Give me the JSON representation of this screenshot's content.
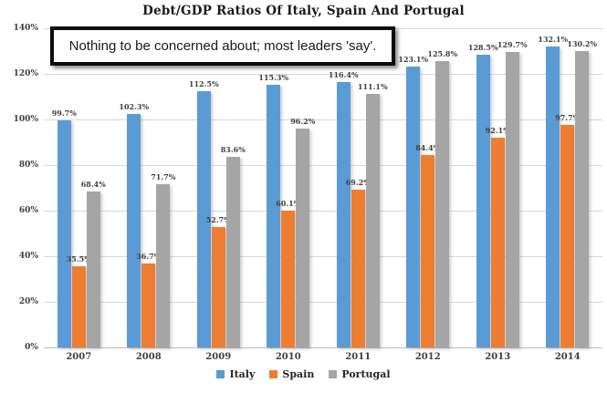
{
  "title": "Debt/GDP Ratios Of Italy, Spain And Portugal",
  "annotation": "Nothing to be concerned about; most leaders 'say'.",
  "colors": {
    "italy": "#5B9BD5",
    "spain": "#ED7D31",
    "portugal": "#A5A5A5",
    "gridline": "#D9D9D9",
    "label_text": "#404040"
  },
  "chart_data": {
    "type": "bar",
    "title": "Debt/GDP Ratios Of Italy, Spain And Portugal",
    "categories": [
      "2007",
      "2008",
      "2009",
      "2010",
      "2011",
      "2012",
      "2013",
      "2014"
    ],
    "series": [
      {
        "name": "Italy",
        "color_key": "italy",
        "values": [
          99.7,
          102.3,
          112.5,
          115.3,
          116.4,
          123.1,
          128.5,
          132.1
        ]
      },
      {
        "name": "Spain",
        "color_key": "spain",
        "values": [
          35.5,
          36.7,
          52.7,
          60.1,
          69.2,
          84.4,
          92.1,
          97.7
        ]
      },
      {
        "name": "Portugal",
        "color_key": "portugal",
        "values": [
          68.4,
          71.7,
          83.6,
          96.2,
          111.1,
          125.8,
          129.7,
          130.2
        ]
      }
    ],
    "xlabel": "",
    "ylabel": "",
    "ylim": [
      0,
      140
    ],
    "ytick_step": 20,
    "ytick_labels": [
      "0%",
      "20%",
      "40%",
      "60%",
      "80%",
      "100%",
      "120%",
      "140%"
    ],
    "grid": true,
    "legend_position": "bottom",
    "value_label_suffix": "%"
  },
  "legend": {
    "items": [
      {
        "label": "Italy"
      },
      {
        "label": "Spain"
      },
      {
        "label": "Portugal"
      }
    ]
  }
}
